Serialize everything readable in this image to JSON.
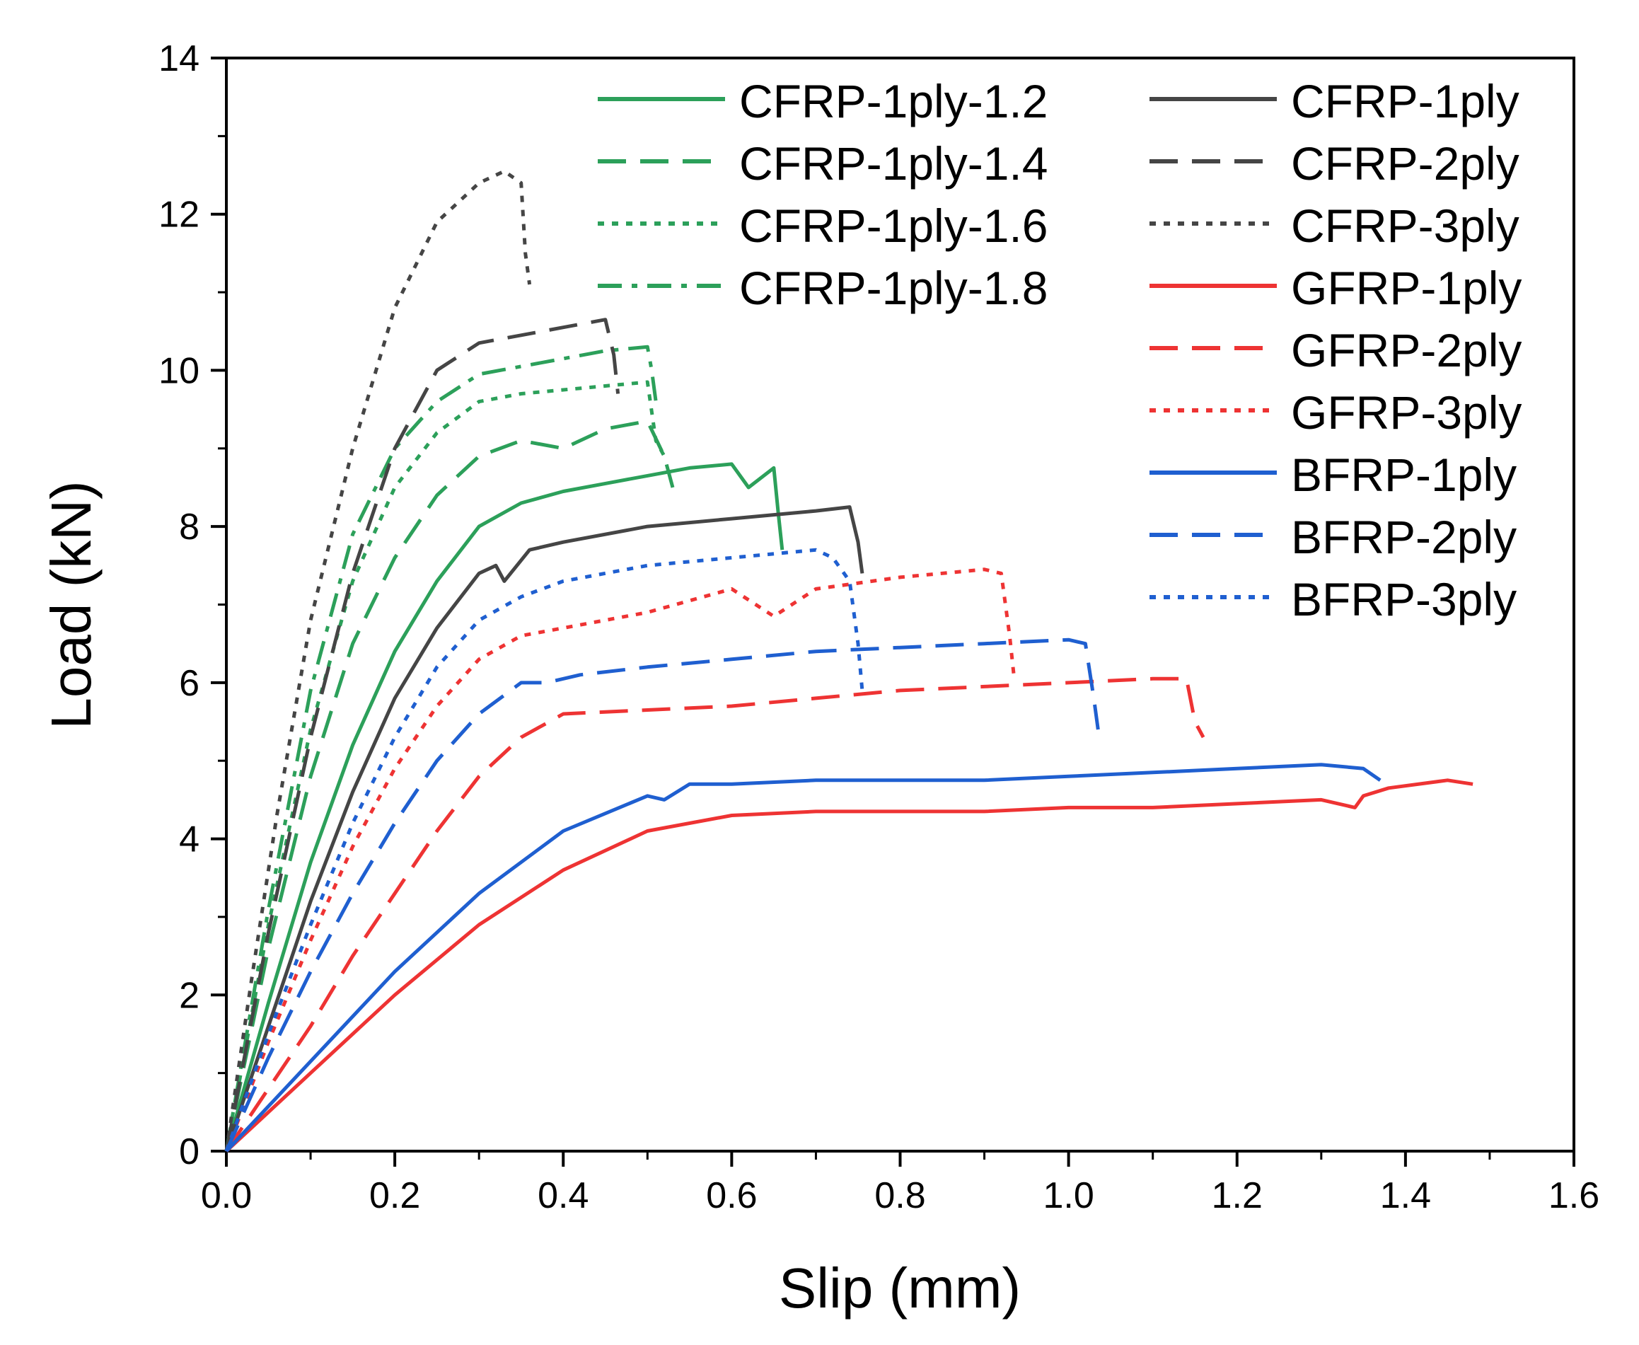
{
  "chart_data": {
    "type": "line",
    "title": "",
    "xlabel": "Slip (mm)",
    "ylabel": "Load (kN)",
    "xlim": [
      0.0,
      1.6
    ],
    "ylim": [
      0,
      14
    ],
    "xticks": [
      "0.0",
      "0.2",
      "0.4",
      "0.6",
      "0.8",
      "1.0",
      "1.2",
      "1.4",
      "1.6"
    ],
    "yticks": [
      "0",
      "2",
      "4",
      "6",
      "8",
      "10",
      "12",
      "14"
    ],
    "grid": false,
    "legend_position": "top-right",
    "series": [
      {
        "name": "CFRP-1ply-1.2",
        "color": "#2ca05a",
        "style": "solid",
        "x": [
          0,
          0.05,
          0.1,
          0.15,
          0.2,
          0.25,
          0.3,
          0.35,
          0.4,
          0.45,
          0.5,
          0.55,
          0.6,
          0.62,
          0.65,
          0.655,
          0.66
        ],
        "y": [
          0,
          1.9,
          3.7,
          5.2,
          6.4,
          7.3,
          8.0,
          8.3,
          8.45,
          8.55,
          8.65,
          8.75,
          8.8,
          8.5,
          8.75,
          8.2,
          7.7
        ]
      },
      {
        "name": "CFRP-1ply-1.4",
        "color": "#2ca05a",
        "style": "dashed",
        "x": [
          0,
          0.05,
          0.1,
          0.15,
          0.2,
          0.25,
          0.3,
          0.35,
          0.4,
          0.45,
          0.5,
          0.52,
          0.53
        ],
        "y": [
          0,
          2.6,
          4.8,
          6.5,
          7.6,
          8.4,
          8.9,
          9.1,
          9.0,
          9.25,
          9.35,
          8.9,
          8.5
        ]
      },
      {
        "name": "CFRP-1ply-1.6",
        "color": "#2ca05a",
        "style": "dotted",
        "x": [
          0,
          0.05,
          0.1,
          0.15,
          0.2,
          0.25,
          0.3,
          0.35,
          0.4,
          0.45,
          0.5,
          0.51,
          0.52
        ],
        "y": [
          0,
          2.9,
          5.4,
          7.3,
          8.5,
          9.2,
          9.6,
          9.7,
          9.75,
          9.8,
          9.85,
          9.1,
          8.9
        ]
      },
      {
        "name": "CFRP-1ply-1.8",
        "color": "#2ca05a",
        "style": "dashdot",
        "x": [
          0,
          0.05,
          0.1,
          0.15,
          0.2,
          0.25,
          0.3,
          0.35,
          0.4,
          0.45,
          0.5,
          0.505,
          0.51
        ],
        "y": [
          0,
          3.1,
          5.9,
          7.9,
          9.0,
          9.6,
          9.95,
          10.05,
          10.15,
          10.25,
          10.3,
          10.0,
          9.6
        ]
      },
      {
        "name": "CFRP-1ply",
        "color": "#454545",
        "style": "solid",
        "x": [
          0,
          0.05,
          0.1,
          0.15,
          0.2,
          0.25,
          0.3,
          0.32,
          0.33,
          0.36,
          0.4,
          0.5,
          0.6,
          0.7,
          0.74,
          0.75,
          0.755
        ],
        "y": [
          0,
          1.6,
          3.2,
          4.6,
          5.8,
          6.7,
          7.4,
          7.5,
          7.3,
          7.7,
          7.8,
          8.0,
          8.1,
          8.2,
          8.25,
          7.8,
          7.4
        ]
      },
      {
        "name": "CFRP-2ply",
        "color": "#454545",
        "style": "dashed",
        "x": [
          0,
          0.05,
          0.1,
          0.15,
          0.2,
          0.25,
          0.3,
          0.35,
          0.4,
          0.45,
          0.46,
          0.465
        ],
        "y": [
          0,
          2.8,
          5.3,
          7.4,
          9.0,
          10.0,
          10.35,
          10.45,
          10.55,
          10.65,
          10.2,
          9.7
        ]
      },
      {
        "name": "CFRP-3ply",
        "color": "#454545",
        "style": "dotted",
        "x": [
          0,
          0.03,
          0.06,
          0.1,
          0.15,
          0.2,
          0.25,
          0.3,
          0.33,
          0.35,
          0.355,
          0.36
        ],
        "y": [
          0,
          2.2,
          4.3,
          6.8,
          9.0,
          10.8,
          11.9,
          12.4,
          12.55,
          12.4,
          11.5,
          11.1
        ]
      },
      {
        "name": "GFRP-1ply",
        "color": "#ee3333",
        "style": "solid",
        "x": [
          0,
          0.1,
          0.2,
          0.3,
          0.4,
          0.5,
          0.6,
          0.7,
          0.8,
          0.9,
          1.0,
          1.1,
          1.2,
          1.3,
          1.34,
          1.35,
          1.38,
          1.45,
          1.48
        ],
        "y": [
          0,
          1.0,
          2.0,
          2.9,
          3.6,
          4.1,
          4.3,
          4.35,
          4.35,
          4.35,
          4.4,
          4.4,
          4.45,
          4.5,
          4.4,
          4.55,
          4.65,
          4.75,
          4.7
        ]
      },
      {
        "name": "GFRP-2ply",
        "color": "#ee3333",
        "style": "dashed",
        "x": [
          0,
          0.05,
          0.1,
          0.15,
          0.2,
          0.25,
          0.3,
          0.35,
          0.4,
          0.5,
          0.6,
          0.7,
          0.8,
          0.9,
          1.0,
          1.1,
          1.14,
          1.15,
          1.16
        ],
        "y": [
          0,
          0.8,
          1.6,
          2.5,
          3.3,
          4.1,
          4.8,
          5.3,
          5.6,
          5.65,
          5.7,
          5.8,
          5.9,
          5.95,
          6.0,
          6.05,
          6.05,
          5.5,
          5.3
        ]
      },
      {
        "name": "GFRP-3ply",
        "color": "#ee3333",
        "style": "dotted",
        "x": [
          0,
          0.05,
          0.1,
          0.15,
          0.2,
          0.25,
          0.3,
          0.35,
          0.4,
          0.5,
          0.6,
          0.65,
          0.7,
          0.8,
          0.9,
          0.92,
          0.93,
          0.935
        ],
        "y": [
          0,
          1.4,
          2.7,
          3.9,
          4.9,
          5.7,
          6.3,
          6.6,
          6.7,
          6.9,
          7.2,
          6.85,
          7.2,
          7.35,
          7.45,
          7.4,
          6.6,
          6.1
        ]
      },
      {
        "name": "BFRP-1ply",
        "color": "#1f5fd0",
        "style": "solid",
        "x": [
          0,
          0.1,
          0.2,
          0.3,
          0.4,
          0.5,
          0.52,
          0.55,
          0.6,
          0.7,
          0.8,
          0.9,
          1.0,
          1.1,
          1.2,
          1.3,
          1.35,
          1.37
        ],
        "y": [
          0,
          1.15,
          2.3,
          3.3,
          4.1,
          4.55,
          4.5,
          4.7,
          4.7,
          4.75,
          4.75,
          4.75,
          4.8,
          4.85,
          4.9,
          4.95,
          4.9,
          4.75
        ]
      },
      {
        "name": "BFRP-2ply",
        "color": "#1f5fd0",
        "style": "dashed",
        "x": [
          0,
          0.05,
          0.1,
          0.15,
          0.2,
          0.25,
          0.3,
          0.35,
          0.38,
          0.42,
          0.5,
          0.6,
          0.7,
          0.8,
          0.9,
          1.0,
          1.02,
          1.03,
          1.035
        ],
        "y": [
          0,
          1.2,
          2.3,
          3.3,
          4.2,
          5.0,
          5.6,
          6.0,
          6.0,
          6.1,
          6.2,
          6.3,
          6.4,
          6.45,
          6.5,
          6.55,
          6.5,
          5.8,
          5.4
        ]
      },
      {
        "name": "BFRP-3ply",
        "color": "#1f5fd0",
        "style": "dotted",
        "x": [
          0,
          0.05,
          0.1,
          0.15,
          0.2,
          0.25,
          0.3,
          0.35,
          0.4,
          0.5,
          0.6,
          0.7,
          0.72,
          0.74,
          0.75,
          0.755
        ],
        "y": [
          0,
          1.5,
          2.9,
          4.2,
          5.3,
          6.2,
          6.8,
          7.1,
          7.3,
          7.5,
          7.6,
          7.7,
          7.6,
          7.3,
          6.5,
          5.9
        ]
      }
    ]
  }
}
